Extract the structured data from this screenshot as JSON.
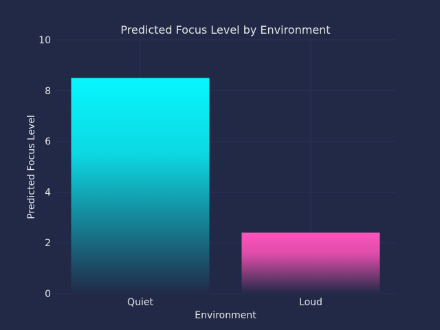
{
  "chart_data": {
    "type": "bar",
    "title": "Predicted Focus Level by Environment",
    "xlabel": "Environment",
    "ylabel": "Predicted Focus Level",
    "categories": [
      "Quiet",
      "Loud"
    ],
    "values": [
      8.5,
      2.4
    ],
    "ylim": [
      0,
      10
    ],
    "yticks": [
      "0",
      "2",
      "4",
      "6",
      "8",
      "10"
    ],
    "grid": true,
    "legend": "none",
    "colors": {
      "background": "#212946",
      "grid": "#2A3459",
      "text": "#E6E6E6",
      "bars": [
        "#08F7FE",
        "#FE53BB"
      ]
    }
  }
}
